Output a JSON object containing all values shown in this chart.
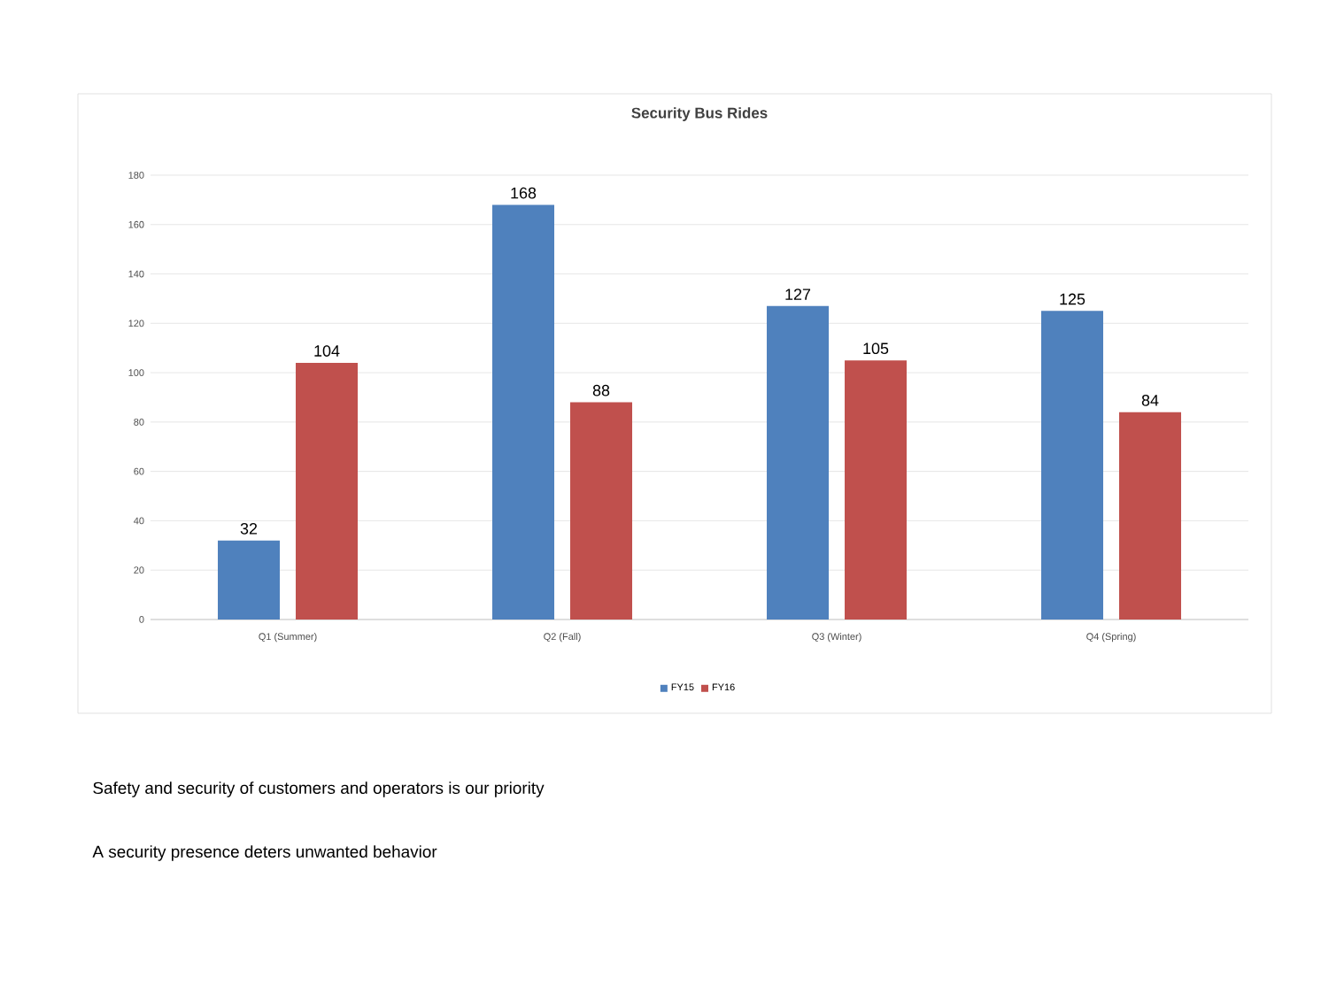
{
  "chart_data": {
    "type": "bar",
    "title": "Security Bus Rides",
    "categories": [
      "Q1 (Summer)",
      "Q2 (Fall)",
      "Q3 (Winter)",
      "Q4 (Spring)"
    ],
    "series": [
      {
        "name": "FY15",
        "color": "#4f81bd",
        "values": [
          32,
          168,
          127,
          125
        ]
      },
      {
        "name": "FY16",
        "color": "#c0504d",
        "values": [
          104,
          88,
          105,
          84
        ]
      }
    ],
    "ylim": [
      0,
      180
    ],
    "yticks": [
      0,
      20,
      40,
      60,
      80,
      100,
      120,
      140,
      160,
      180
    ],
    "grid": "y",
    "legend": "bottom",
    "data_labels": true,
    "annotations": [
      "Safety and security of customers and operators is our priority",
      "A security presence deters unwanted behavior"
    ]
  }
}
